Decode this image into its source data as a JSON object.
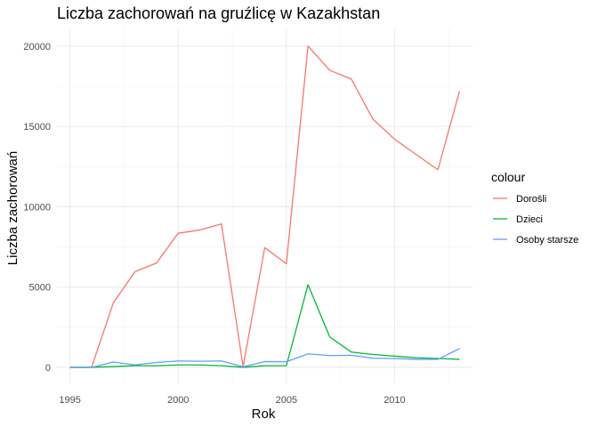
{
  "chart_data": {
    "type": "line",
    "title": "Liczba zachorowań na gruźlicę w Kazakhstan",
    "xlabel": "Rok",
    "ylabel": "Liczba zachorowań",
    "legend_title": "colour",
    "legend_position": "right",
    "grid": true,
    "xlim": [
      1994.4,
      2013.6
    ],
    "ylim": [
      -1000,
      21100
    ],
    "x_ticks": [
      1995,
      2000,
      2005,
      2010
    ],
    "x_tick_labels": [
      "1995",
      "2000",
      "2005",
      "2010"
    ],
    "y_ticks": [
      0,
      5000,
      10000,
      15000,
      20000
    ],
    "y_tick_labels": [
      "0",
      "5000",
      "10000",
      "15000",
      "20000"
    ],
    "x": [
      1995,
      1996,
      1997,
      1998,
      1999,
      2000,
      2001,
      2002,
      2003,
      2004,
      2005,
      2006,
      2007,
      2008,
      2009,
      2010,
      2011,
      2012,
      2013
    ],
    "series": [
      {
        "name": "Dorośli",
        "color": "#F8766D",
        "values": [
          0,
          0,
          4000,
          5950,
          6500,
          8350,
          8550,
          8930,
          50,
          7450,
          6450,
          20000,
          18500,
          17950,
          15450,
          14200,
          13250,
          12300,
          17200
        ]
      },
      {
        "name": "Dzieci",
        "color": "#00BA38",
        "values": [
          0,
          0,
          50,
          100,
          100,
          150,
          150,
          100,
          0,
          100,
          100,
          5150,
          1900,
          950,
          800,
          700,
          600,
          550,
          500
        ]
      },
      {
        "name": "Osoby starsze",
        "color": "#619CFF",
        "values": [
          0,
          0,
          330,
          150,
          300,
          400,
          380,
          400,
          30,
          360,
          350,
          840,
          730,
          750,
          570,
          550,
          500,
          500,
          1170
        ]
      }
    ]
  }
}
